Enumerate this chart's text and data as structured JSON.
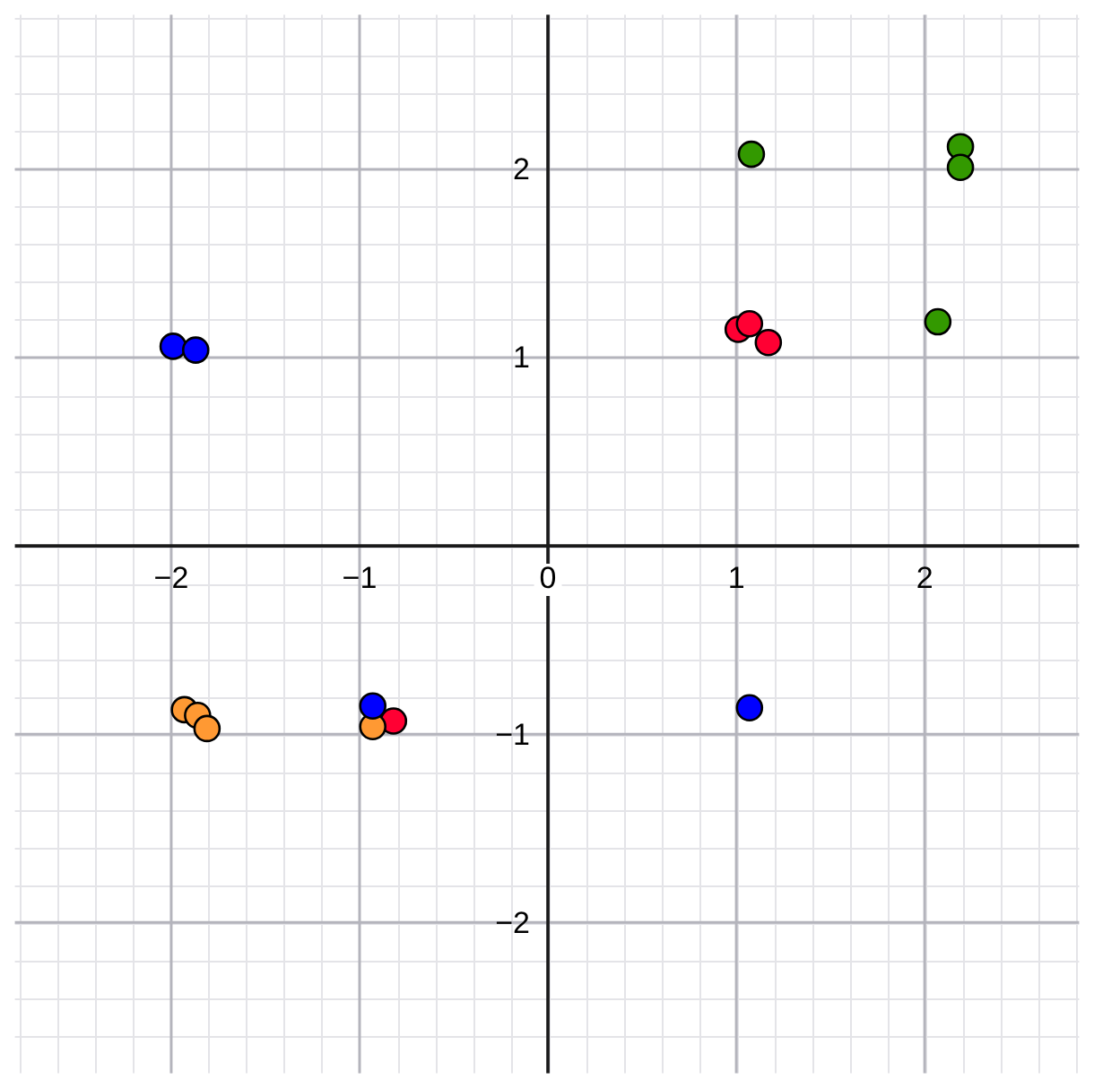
{
  "chart_data": {
    "type": "scatter",
    "series": [
      {
        "color": "#0000ff",
        "x": [
          -1.99,
          -1.87,
          -0.93,
          1.07
        ],
        "values": [
          1.06,
          1.04,
          -0.85,
          -0.86
        ]
      },
      {
        "color": "#ff9933",
        "x": [
          -1.93,
          -1.86,
          -1.81,
          -0.93
        ],
        "values": [
          -0.87,
          -0.9,
          -0.97,
          -0.96
        ]
      },
      {
        "color": "#ff0033",
        "x": [
          -0.82,
          1.01,
          1.07,
          1.17
        ],
        "values": [
          -0.93,
          1.15,
          1.18,
          1.08
        ]
      },
      {
        "color": "#339900",
        "x": [
          1.08,
          2.19,
          2.19,
          2.07
        ],
        "values": [
          2.08,
          2.12,
          2.01,
          1.19
        ]
      }
    ],
    "xlim": [
      -2.83,
      2.82
    ],
    "ylim": [
      -2.8,
      2.82
    ],
    "xticks": [
      {
        "value": -2,
        "label": "−2"
      },
      {
        "value": -1,
        "label": "−1"
      },
      0,
      1,
      2
    ],
    "yticks": [
      {
        "value": -2,
        "label": "−2"
      },
      {
        "value": -1,
        "label": "−1"
      },
      1,
      2
    ],
    "grid": true,
    "legend": false,
    "marker": "circle"
  }
}
